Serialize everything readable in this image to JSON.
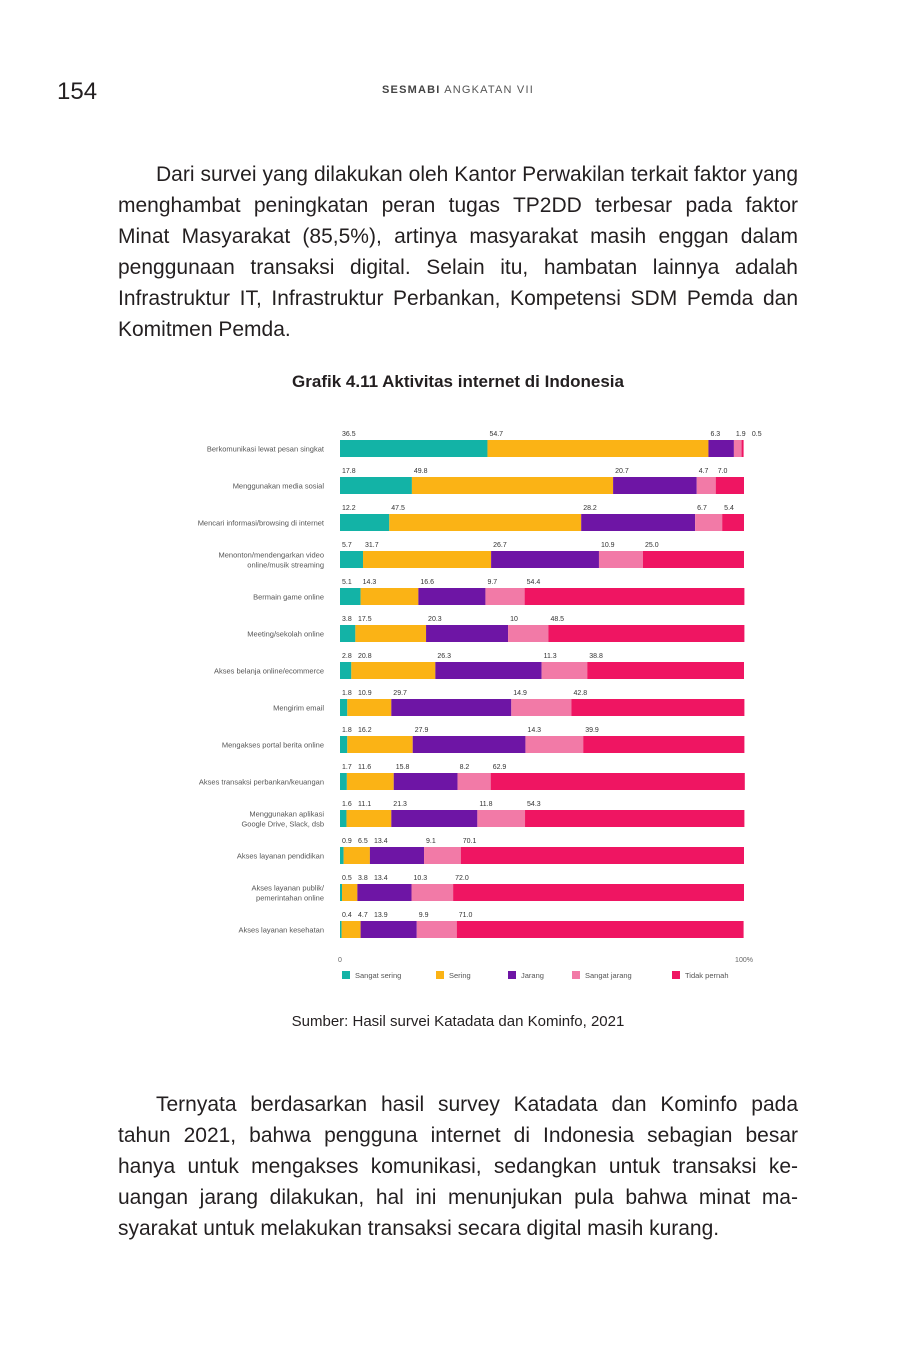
{
  "header": {
    "page_number": "154",
    "running_head_bold": "SESMABI",
    "running_head_rest": "ANGKATAN VII"
  },
  "paragraphs": {
    "intro": "Dari survei yang dilakukan oleh Kantor Perwakilan terkait faktor yang menghambat peningkatan peran tugas TP2DD terbesar pada faktor Minat Masyarakat (85,5%), artinya masyarakat masih enggan dalam penggunaan transaksi digital. Selain itu, hambatan lainnya adalah Infrastruktur IT, Infrastruktur Perbankan, Kompetensi SDM Pemda dan Komitmen Pemda.",
    "conclusion": "Ternyata berdasarkan hasil survey Katadata dan Kominfo pada tahun 2021, bahwa pengguna internet di Indonesia sebagian besar hanya untuk mengakses komunikasi, sedangkan untuk transaksi ke­uangan jarang dilakukan, hal ini menunjukan pula bahwa minat ma­syarakat untuk melakukan transaksi secara digital masih kurang."
  },
  "figure": {
    "title": "Grafik 4.11 Aktivitas internet di Indonesia",
    "source": "Sumber: Hasil survei Katadata dan Kominfo, 2021"
  },
  "chart_data": {
    "type": "bar",
    "orientation": "horizontal",
    "stacked": true,
    "title": "Grafik 4.11 Aktivitas internet di Indonesia",
    "xlim": [
      0,
      100
    ],
    "x_ticks": [
      "0",
      "100%"
    ],
    "legend_position": "bottom",
    "categories": [
      "Berkomunikasi lewat pesan singkat",
      "Menggunakan media sosial",
      "Mencari informasi/browsing di internet",
      "Menonton/mendengarkan video online/musik streaming",
      "Bermain game online",
      "Meeting/sekolah online",
      "Akses belanja online/ecommerce",
      "Mengirim email",
      "Mengakses portal berita online",
      "Akses transaksi perbankan/keuangan",
      "Menggunakan aplikasi Google Drive, Slack, dsb",
      "Akses layanan pendidikan",
      "Akses layanan publik/ pemerintahan online",
      "Akses layanan kesehatan"
    ],
    "category_lines": [
      [
        "Berkomunikasi lewat pesan singkat"
      ],
      [
        "Menggunakan media sosial"
      ],
      [
        "Mencari informasi/browsing di internet"
      ],
      [
        "Menonton/mendengarkan video",
        "online/musik streaming"
      ],
      [
        "Bermain game online"
      ],
      [
        "Meeting/sekolah online"
      ],
      [
        "Akses belanja online/ecommerce"
      ],
      [
        "Mengirim email"
      ],
      [
        "Mengakses portal berita online"
      ],
      [
        "Akses transaksi perbankan/keuangan"
      ],
      [
        "Menggunakan aplikasi",
        "Google Drive, Slack, dsb"
      ],
      [
        "Akses layanan pendidikan"
      ],
      [
        "Akses layanan publik/",
        "pemerintahan online"
      ],
      [
        "Akses layanan kesehatan"
      ]
    ],
    "series": [
      {
        "name": "Sangat sering",
        "color": "#13b3a6",
        "values": [
          36.5,
          17.8,
          12.2,
          5.7,
          5.1,
          3.8,
          2.8,
          1.8,
          1.8,
          1.7,
          1.6,
          0.9,
          0.5,
          0.4
        ]
      },
      {
        "name": "Sering",
        "color": "#fbb315",
        "values": [
          54.7,
          49.8,
          47.5,
          31.7,
          14.3,
          17.5,
          20.8,
          10.9,
          16.2,
          11.6,
          11.1,
          6.5,
          3.8,
          4.7
        ]
      },
      {
        "name": "Jarang",
        "color": "#6e15a5",
        "values": [
          6.3,
          20.7,
          28.2,
          26.7,
          16.6,
          20.3,
          26.3,
          29.7,
          27.9,
          15.8,
          21.3,
          13.4,
          13.4,
          13.9
        ]
      },
      {
        "name": "Sangat jarang",
        "color": "#f27aa7",
        "values": [
          1.9,
          4.7,
          6.7,
          10.9,
          9.7,
          10,
          11.3,
          14.9,
          14.3,
          8.2,
          11.8,
          9.1,
          10.3,
          9.9
        ]
      },
      {
        "name": "Tidak pernah",
        "color": "#ef1562",
        "values": [
          0.5,
          7.0,
          5.4,
          25.0,
          54.4,
          48.5,
          38.8,
          42.8,
          39.9,
          62.9,
          54.3,
          70.1,
          72.0,
          71.0
        ]
      }
    ],
    "value_labels": [
      [
        "36.5",
        "54.7",
        "6.3",
        "1.9",
        "0.5"
      ],
      [
        "17.8",
        "49.8",
        "20.7",
        "4.7",
        "7.0"
      ],
      [
        "12.2",
        "47.5",
        "28.2",
        "6.7",
        "5.4"
      ],
      [
        "5.7",
        "31.7",
        "26.7",
        "10.9",
        "25.0"
      ],
      [
        "5.1",
        "14.3",
        "16.6",
        "9.7",
        "54.4"
      ],
      [
        "3.8",
        "17.5",
        "20.3",
        "10",
        "48.5"
      ],
      [
        "2.8",
        "20.8",
        "26.3",
        "11.3",
        "38.8"
      ],
      [
        "1.8",
        "10.9",
        "29.7",
        "14.9",
        "42.8"
      ],
      [
        "1.8",
        "16.2",
        "27.9",
        "14.3",
        "39.9"
      ],
      [
        "1.7",
        "11.6",
        "15.8",
        "8.2",
        "62.9"
      ],
      [
        "1.6",
        "11.1",
        "21.3",
        "11.8",
        "54.3"
      ],
      [
        "0.9",
        "6.5",
        "13.4",
        "9.1",
        "70.1"
      ],
      [
        "0.5",
        "3.8",
        "13.4",
        "10.3",
        "72.0"
      ],
      [
        "0.4",
        "4.7",
        "13.9",
        "9.9",
        "71.0"
      ]
    ]
  }
}
